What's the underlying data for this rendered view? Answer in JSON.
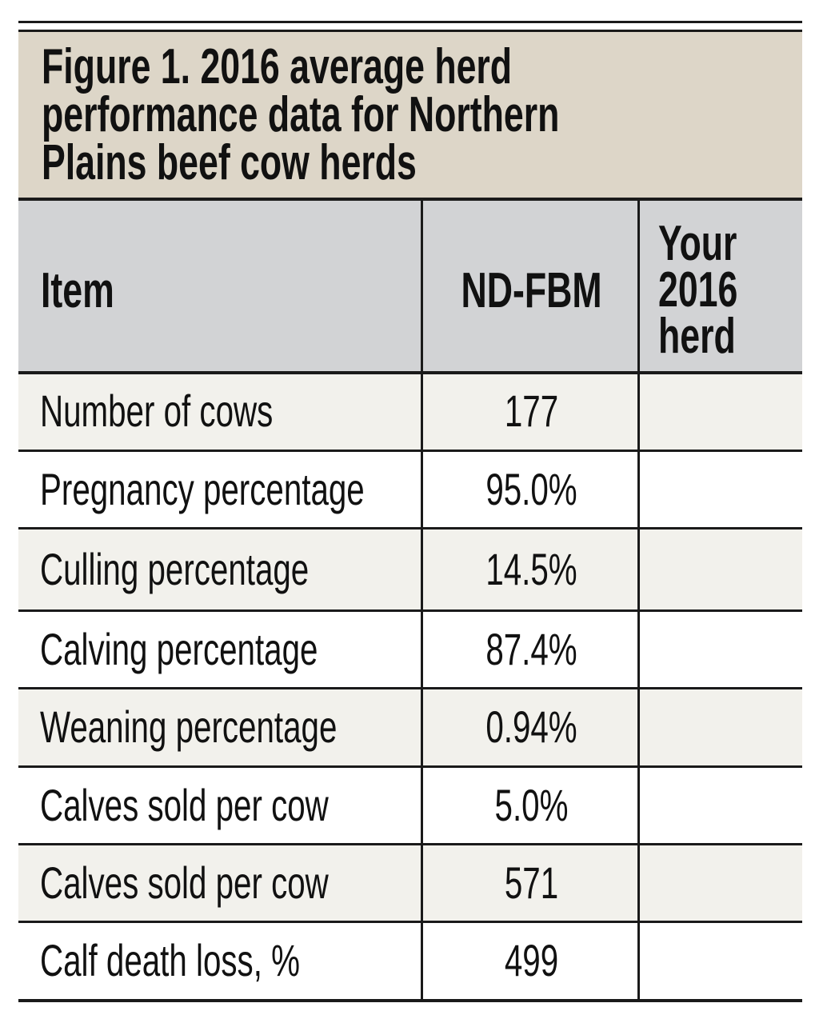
{
  "chart_data": {
    "type": "table",
    "title": [
      "Figure 1. 2016 average herd",
      "performance data for Northern",
      "Plains beef cow herds"
    ],
    "columns": [
      "Item",
      "ND-FBM",
      [
        "Your",
        "2016",
        "herd"
      ]
    ],
    "rows": [
      {
        "item": "Number of cows",
        "nd_fbm": "177",
        "your_herd": ""
      },
      {
        "item": "Pregnancy percentage",
        "nd_fbm": "95.0%",
        "your_herd": ""
      },
      {
        "item": "Culling percentage",
        "nd_fbm": "14.5%",
        "your_herd": ""
      },
      {
        "item": "Calving percentage",
        "nd_fbm": "87.4%",
        "your_herd": ""
      },
      {
        "item": "Weaning percentage",
        "nd_fbm": "0.94%",
        "your_herd": ""
      },
      {
        "item": "Calves sold per cow",
        "nd_fbm": "5.0%",
        "your_herd": ""
      },
      {
        "item": "Calves sold per cow",
        "nd_fbm": "571",
        "your_herd": ""
      },
      {
        "item": "Calf death loss, %",
        "nd_fbm": "499",
        "your_herd": ""
      }
    ],
    "colors": {
      "title_bg": "#ddd6c8",
      "header_bg": "#d2d3d5",
      "alt_row_bg": "#f2f1ec",
      "row_bg": "#ffffff",
      "rule": "#1a1a1a"
    }
  }
}
